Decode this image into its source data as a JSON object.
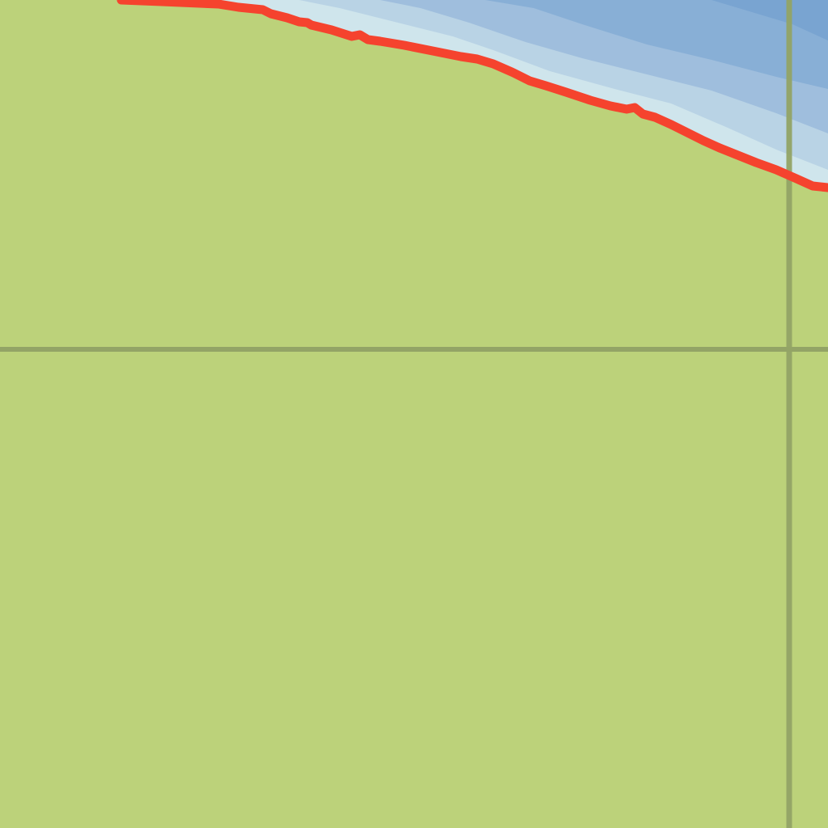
{
  "map": {
    "colors": {
      "land": "#bcd27a",
      "grid_line": "#93a466",
      "coastline": "#f5432e",
      "water_shallow": "#cfe5ec",
      "water_shallow_2": "#b9d3e5",
      "water_mid": "#9fbedd",
      "water_deep": "#88afd6",
      "water_deepest": "#79a4d1"
    },
    "features": {
      "coastline": "coastline-line",
      "water": "sea-area",
      "land": "land-area",
      "graticule": "grid-lines"
    }
  }
}
